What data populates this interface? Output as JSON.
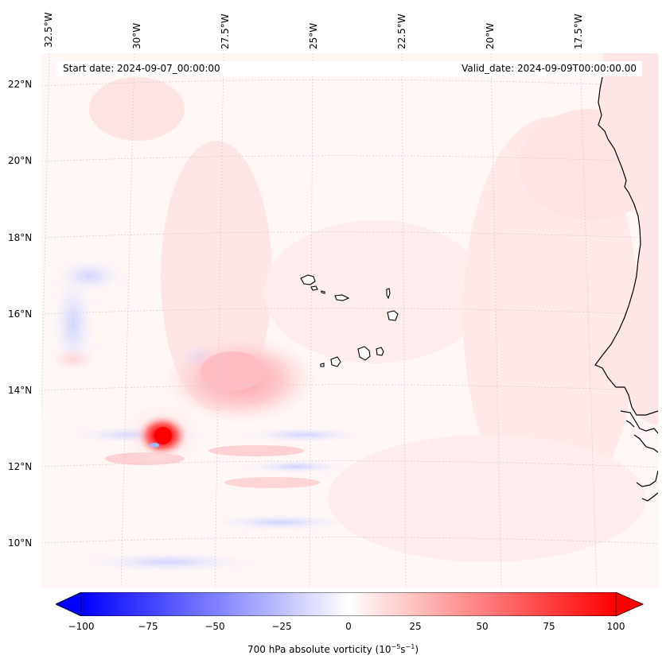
{
  "map": {
    "title_start": "Start date: 2024-09-07_00:00:00",
    "title_valid": "Valid_date: 2024-09-09T00:00:00.00",
    "lon_labels": [
      "32.5°W",
      "30°W",
      "27.5°W",
      "25°W",
      "22.5°W",
      "20°W",
      "17.5°W"
    ],
    "lat_labels": [
      "22°N",
      "20°N",
      "18°N",
      "16°N",
      "14°N",
      "12°N",
      "10°N"
    ],
    "features": [
      "vorticity-maximum",
      "cape-verde-islands",
      "west-africa-coastline"
    ]
  },
  "colorbar": {
    "label_main": "700 hPa absolute vorticity (10",
    "label_exp1": "−5",
    "label_mid": "s",
    "label_exp2": "−1",
    "label_end": ")",
    "ticks": [
      "−100",
      "−75",
      "−50",
      "−25",
      "0",
      "25",
      "50",
      "75",
      "100"
    ],
    "range": [
      -100,
      100
    ],
    "colors": {
      "low": "#0000ff",
      "mid": "#ffffff",
      "high": "#ff0000"
    }
  }
}
